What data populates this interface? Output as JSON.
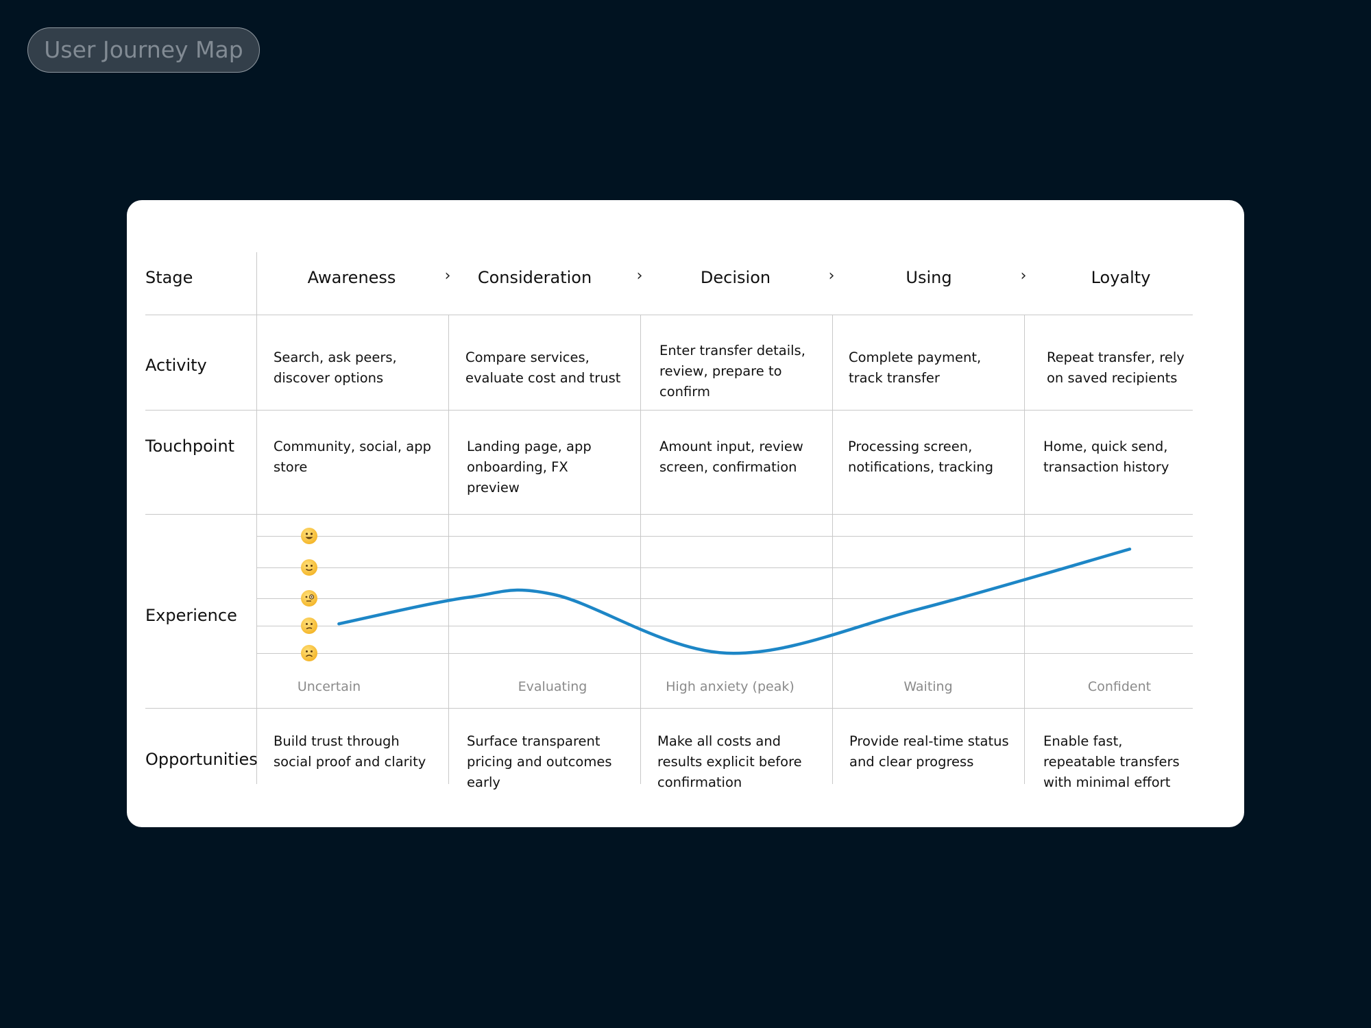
{
  "page_title": "User Journey Map",
  "colors": {
    "background": "#011321",
    "card": "#ffffff",
    "curve": "#1d86c6",
    "grid": "#c8c8c8",
    "emotion_label": "#8a8a8a"
  },
  "row_labels": {
    "stage": "Stage",
    "activity": "Activity",
    "touchpoint": "Touchpoint",
    "experience": "Experience",
    "opportunities": "Opportunities"
  },
  "stages": [
    {
      "name": "Awareness",
      "activity": "Search, ask peers, discover options",
      "touchpoint": "Community, social, app store",
      "emotion": "Uncertain",
      "opportunity": "Build trust through social proof and clarity"
    },
    {
      "name": "Consideration",
      "activity": "Compare services, evaluate cost and trust",
      "touchpoint": "Landing page, app onboarding, FX preview",
      "emotion": "Evaluating",
      "opportunity": "Surface transparent pricing and outcomes early"
    },
    {
      "name": "Decision",
      "activity": "Enter transfer details, review, prepare to confirm",
      "touchpoint": "Amount input, review screen, confirmation",
      "emotion": "High anxiety (peak)",
      "opportunity": "Make all costs and results explicit before confirmation"
    },
    {
      "name": "Using",
      "activity": "Complete payment, track transfer",
      "touchpoint": "Processing screen, notifications, tracking",
      "emotion": "Waiting",
      "opportunity": "Provide real-time status and clear progress"
    },
    {
      "name": "Loyalty",
      "activity": "Repeat transfer, rely on saved recipients",
      "touchpoint": "Home, quick send, transaction history",
      "emotion": "Confident",
      "opportunity": "Enable fast, repeatable transfers with minimal effort"
    }
  ],
  "experience_scale": [
    {
      "icon": "grinning-face-icon",
      "level": 5
    },
    {
      "icon": "slightly-smiling-face-icon",
      "level": 4
    },
    {
      "icon": "monocle-face-icon",
      "level": 3
    },
    {
      "icon": "confused-face-icon",
      "level": 2
    },
    {
      "icon": "frowning-face-icon",
      "level": 1
    }
  ],
  "chart_data": {
    "type": "line",
    "title": "",
    "xlabel": "",
    "ylabel": "",
    "categories": [
      "Awareness",
      "Consideration",
      "Decision",
      "Using",
      "Loyalty"
    ],
    "y_scale": [
      1,
      5
    ],
    "series": [
      {
        "x": [
          0.43,
          1.1,
          1.55,
          2.45,
          3.45,
          4.55
        ],
        "values": [
          2.0,
          2.9,
          3.0,
          1.0,
          2.5,
          4.55
        ]
      }
    ]
  }
}
